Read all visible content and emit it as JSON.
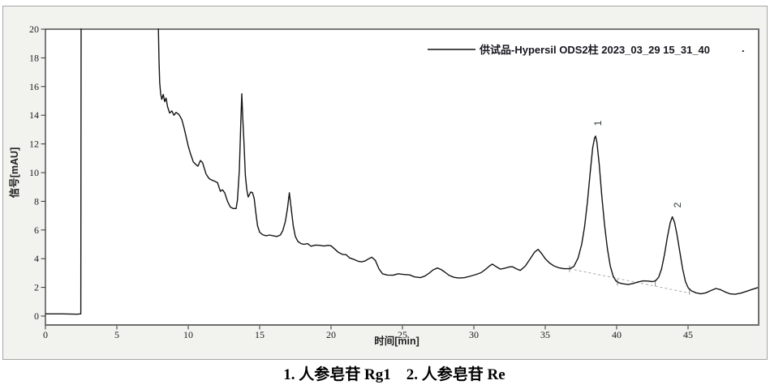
{
  "legend": {
    "label": "供试品-Hypersil ODS2柱 2023_03_29 15_31_40",
    "trailing_dot": "."
  },
  "axes": {
    "x_title": "时间[min]",
    "y_title": "信号[mAU]"
  },
  "caption": "1. 人参皂苷 Rg1　2. 人参皂苷 Re",
  "chart_data": {
    "type": "line",
    "title": "供试品-Hypersil ODS2柱 2023_03_29 15_31_40",
    "xlabel": "时间[min]",
    "ylabel": "信号[mAU]",
    "xlim": [
      0,
      50
    ],
    "ylim": [
      0,
      20
    ],
    "grid": false,
    "legend_position": "top-right",
    "x_ticks": [
      0,
      5,
      10,
      15,
      20,
      25,
      30,
      35,
      40,
      45
    ],
    "y_ticks": [
      0,
      2,
      4,
      6,
      8,
      10,
      12,
      14,
      16,
      18,
      20
    ],
    "peaks": [
      {
        "label": "1",
        "compound": "人参皂苷 Rg1",
        "time_min": 38.5,
        "height_mau": 12.55
      },
      {
        "label": "2",
        "compound": "人参皂苷 Re",
        "time_min": 43.9,
        "height_mau": 6.9
      }
    ],
    "integration_baseline": {
      "from": [
        36.7,
        3.3
      ],
      "to": [
        45.1,
        1.6
      ],
      "markers": [
        [
          36.7,
          3.3
        ],
        [
          40.05,
          2.35
        ],
        [
          42.7,
          2.3
        ],
        [
          45.1,
          1.72
        ]
      ]
    },
    "series": [
      {
        "name": "供试品-Hypersil ODS2柱 2023_03_29 15_31_40",
        "points": [
          [
            0,
            0.15
          ],
          [
            1.2,
            0.15
          ],
          [
            2.2,
            0.13
          ],
          [
            2.48,
            0.15
          ],
          [
            2.5,
            21.5
          ],
          [
            7.88,
            21.5
          ],
          [
            7.95,
            18.0
          ],
          [
            8.0,
            16.3
          ],
          [
            8.07,
            15.5
          ],
          [
            8.15,
            15.1
          ],
          [
            8.25,
            15.45
          ],
          [
            8.35,
            14.95
          ],
          [
            8.45,
            15.2
          ],
          [
            8.55,
            14.6
          ],
          [
            8.7,
            14.15
          ],
          [
            8.85,
            14.3
          ],
          [
            9.0,
            14.0
          ],
          [
            9.15,
            14.2
          ],
          [
            9.35,
            14.05
          ],
          [
            9.55,
            13.7
          ],
          [
            9.7,
            13.15
          ],
          [
            9.85,
            12.5
          ],
          [
            10.0,
            11.85
          ],
          [
            10.15,
            11.35
          ],
          [
            10.35,
            10.75
          ],
          [
            10.55,
            10.55
          ],
          [
            10.68,
            10.45
          ],
          [
            10.85,
            10.85
          ],
          [
            11.0,
            10.7
          ],
          [
            11.25,
            9.9
          ],
          [
            11.45,
            9.6
          ],
          [
            11.6,
            9.5
          ],
          [
            11.85,
            9.4
          ],
          [
            12.05,
            9.3
          ],
          [
            12.15,
            9.0
          ],
          [
            12.25,
            8.7
          ],
          [
            12.4,
            8.8
          ],
          [
            12.55,
            8.6
          ],
          [
            12.75,
            8.0
          ],
          [
            12.95,
            7.6
          ],
          [
            13.15,
            7.5
          ],
          [
            13.35,
            7.5
          ],
          [
            13.45,
            8.1
          ],
          [
            13.58,
            10.2
          ],
          [
            13.68,
            13.5
          ],
          [
            13.75,
            15.5
          ],
          [
            13.82,
            13.8
          ],
          [
            13.9,
            12.2
          ],
          [
            14.0,
            9.8
          ],
          [
            14.1,
            8.8
          ],
          [
            14.2,
            8.3
          ],
          [
            14.38,
            8.65
          ],
          [
            14.5,
            8.6
          ],
          [
            14.62,
            8.2
          ],
          [
            14.72,
            7.3
          ],
          [
            14.85,
            6.3
          ],
          [
            15.0,
            5.85
          ],
          [
            15.2,
            5.68
          ],
          [
            15.45,
            5.6
          ],
          [
            15.7,
            5.65
          ],
          [
            15.95,
            5.6
          ],
          [
            16.2,
            5.55
          ],
          [
            16.45,
            5.65
          ],
          [
            16.62,
            5.95
          ],
          [
            16.8,
            6.6
          ],
          [
            16.95,
            7.5
          ],
          [
            17.08,
            8.6
          ],
          [
            17.2,
            7.6
          ],
          [
            17.35,
            6.3
          ],
          [
            17.5,
            5.55
          ],
          [
            17.68,
            5.2
          ],
          [
            17.9,
            5.05
          ],
          [
            18.1,
            5.0
          ],
          [
            18.35,
            5.05
          ],
          [
            18.6,
            4.87
          ],
          [
            18.9,
            4.95
          ],
          [
            19.2,
            4.93
          ],
          [
            19.5,
            4.88
          ],
          [
            19.8,
            4.93
          ],
          [
            20.0,
            4.9
          ],
          [
            20.25,
            4.68
          ],
          [
            20.5,
            4.45
          ],
          [
            20.8,
            4.3
          ],
          [
            21.05,
            4.28
          ],
          [
            21.3,
            4.05
          ],
          [
            21.6,
            3.95
          ],
          [
            21.9,
            3.82
          ],
          [
            22.15,
            3.78
          ],
          [
            22.4,
            3.85
          ],
          [
            22.65,
            4.0
          ],
          [
            22.85,
            4.1
          ],
          [
            23.1,
            3.88
          ],
          [
            23.35,
            3.3
          ],
          [
            23.6,
            2.95
          ],
          [
            23.95,
            2.86
          ],
          [
            24.35,
            2.85
          ],
          [
            24.7,
            2.95
          ],
          [
            25.1,
            2.9
          ],
          [
            25.5,
            2.87
          ],
          [
            25.85,
            2.73
          ],
          [
            26.25,
            2.68
          ],
          [
            26.55,
            2.78
          ],
          [
            26.85,
            2.98
          ],
          [
            27.15,
            3.22
          ],
          [
            27.45,
            3.35
          ],
          [
            27.7,
            3.25
          ],
          [
            27.95,
            3.08
          ],
          [
            28.25,
            2.85
          ],
          [
            28.6,
            2.7
          ],
          [
            28.95,
            2.65
          ],
          [
            29.35,
            2.68
          ],
          [
            29.7,
            2.77
          ],
          [
            30.1,
            2.88
          ],
          [
            30.5,
            3.02
          ],
          [
            30.85,
            3.28
          ],
          [
            31.1,
            3.5
          ],
          [
            31.3,
            3.62
          ],
          [
            31.55,
            3.45
          ],
          [
            31.85,
            3.27
          ],
          [
            32.15,
            3.33
          ],
          [
            32.45,
            3.42
          ],
          [
            32.7,
            3.44
          ],
          [
            33.0,
            3.28
          ],
          [
            33.25,
            3.18
          ],
          [
            33.6,
            3.48
          ],
          [
            33.95,
            4.0
          ],
          [
            34.25,
            4.45
          ],
          [
            34.5,
            4.65
          ],
          [
            34.75,
            4.35
          ],
          [
            35.0,
            4.0
          ],
          [
            35.3,
            3.7
          ],
          [
            35.6,
            3.5
          ],
          [
            35.95,
            3.37
          ],
          [
            36.3,
            3.3
          ],
          [
            36.7,
            3.3
          ],
          [
            37.0,
            3.45
          ],
          [
            37.3,
            4.05
          ],
          [
            37.55,
            5.0
          ],
          [
            37.75,
            6.2
          ],
          [
            37.95,
            7.9
          ],
          [
            38.15,
            10.0
          ],
          [
            38.32,
            11.7
          ],
          [
            38.45,
            12.4
          ],
          [
            38.52,
            12.55
          ],
          [
            38.62,
            12.1
          ],
          [
            38.78,
            10.6
          ],
          [
            38.95,
            8.5
          ],
          [
            39.15,
            6.4
          ],
          [
            39.35,
            4.7
          ],
          [
            39.55,
            3.5
          ],
          [
            39.75,
            2.8
          ],
          [
            39.95,
            2.45
          ],
          [
            40.15,
            2.32
          ],
          [
            40.45,
            2.25
          ],
          [
            40.8,
            2.2
          ],
          [
            41.15,
            2.27
          ],
          [
            41.5,
            2.38
          ],
          [
            41.85,
            2.45
          ],
          [
            42.2,
            2.44
          ],
          [
            42.5,
            2.4
          ],
          [
            42.72,
            2.45
          ],
          [
            42.95,
            2.72
          ],
          [
            43.15,
            3.3
          ],
          [
            43.35,
            4.3
          ],
          [
            43.55,
            5.5
          ],
          [
            43.75,
            6.5
          ],
          [
            43.9,
            6.92
          ],
          [
            44.05,
            6.55
          ],
          [
            44.22,
            5.7
          ],
          [
            44.42,
            4.5
          ],
          [
            44.62,
            3.3
          ],
          [
            44.82,
            2.4
          ],
          [
            45.02,
            1.95
          ],
          [
            45.25,
            1.75
          ],
          [
            45.55,
            1.62
          ],
          [
            45.9,
            1.55
          ],
          [
            46.25,
            1.62
          ],
          [
            46.6,
            1.78
          ],
          [
            46.95,
            1.92
          ],
          [
            47.25,
            1.85
          ],
          [
            47.6,
            1.68
          ],
          [
            47.95,
            1.55
          ],
          [
            48.3,
            1.52
          ],
          [
            48.7,
            1.6
          ],
          [
            49.1,
            1.73
          ],
          [
            49.45,
            1.85
          ],
          [
            49.95,
            2.0
          ]
        ]
      }
    ]
  }
}
